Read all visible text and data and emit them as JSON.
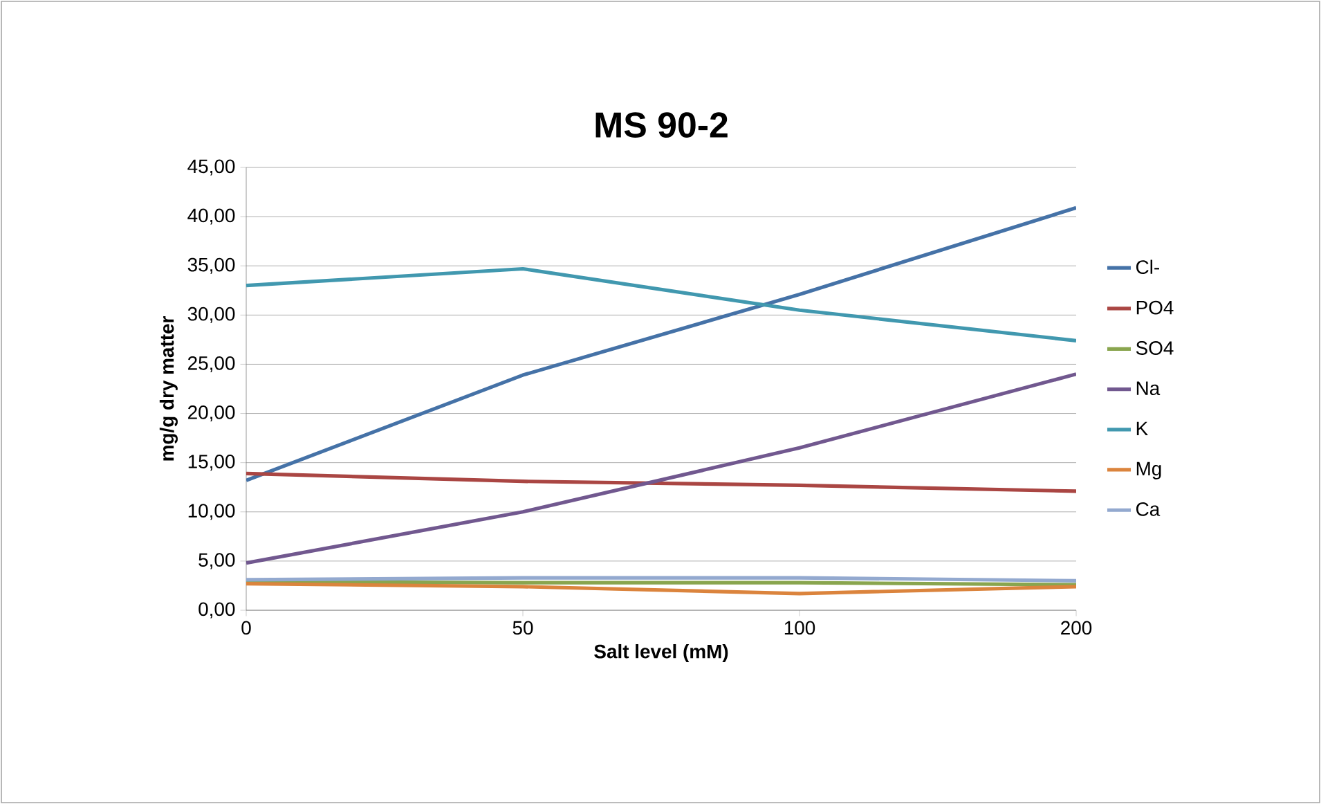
{
  "chart_data": {
    "type": "line",
    "title": "MS 90-2",
    "xlabel": "Salt level (mM)",
    "ylabel": "mg/g dry matter",
    "categories": [
      "0",
      "50",
      "100",
      "200"
    ],
    "series": [
      {
        "name": "Cl-",
        "color": "#4572a7",
        "values": [
          13.2,
          23.9,
          32.1,
          40.9
        ]
      },
      {
        "name": "PO4",
        "color": "#aa4643",
        "values": [
          13.9,
          13.1,
          12.7,
          12.1
        ]
      },
      {
        "name": "SO4",
        "color": "#89a54e",
        "values": [
          2.9,
          2.8,
          2.8,
          2.6
        ]
      },
      {
        "name": "Na",
        "color": "#71588f",
        "values": [
          4.8,
          10.0,
          16.5,
          24.0
        ]
      },
      {
        "name": "K",
        "color": "#4198af",
        "values": [
          33.0,
          34.7,
          30.5,
          27.4
        ]
      },
      {
        "name": "Mg",
        "color": "#db843d",
        "values": [
          2.7,
          2.4,
          1.7,
          2.4
        ]
      },
      {
        "name": "Ca",
        "color": "#93a9cf",
        "values": [
          3.1,
          3.3,
          3.3,
          3.0
        ]
      }
    ],
    "ylim": [
      0,
      45
    ],
    "yticks": [
      {
        "value": 0,
        "label": "0,00"
      },
      {
        "value": 5,
        "label": "5,00"
      },
      {
        "value": 10,
        "label": "10,00"
      },
      {
        "value": 15,
        "label": "15,00"
      },
      {
        "value": 20,
        "label": "20,00"
      },
      {
        "value": 25,
        "label": "25,00"
      },
      {
        "value": 30,
        "label": "30,00"
      },
      {
        "value": 35,
        "label": "35,00"
      },
      {
        "value": 40,
        "label": "40,00"
      },
      {
        "value": 45,
        "label": "45,00"
      }
    ],
    "grid": "y",
    "legend": "right",
    "marker": "none",
    "line_style": "solid"
  }
}
